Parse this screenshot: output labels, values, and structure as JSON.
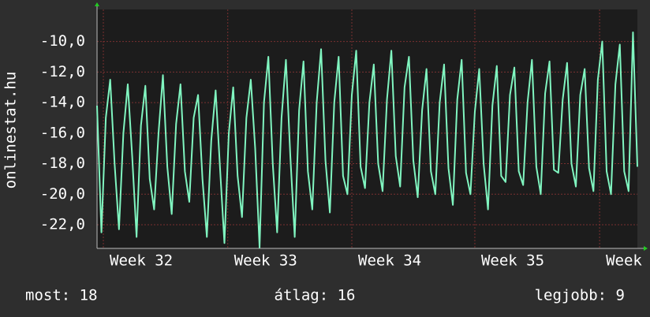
{
  "chart_data": {
    "type": "line",
    "ylabel": "onlinestat.hu",
    "x": [
      0,
      0.25,
      0.5,
      0.75,
      1,
      1.25,
      1.5,
      1.75,
      2,
      2.25,
      2.5,
      2.75,
      3,
      3.25,
      3.5,
      3.75,
      4,
      4.25,
      4.5,
      4.75,
      5,
      5.25,
      5.5,
      5.75,
      6,
      6.25,
      6.5,
      6.75,
      7,
      7.25,
      7.5,
      7.75,
      8,
      8.25,
      8.5,
      8.75,
      9,
      9.25,
      9.5,
      9.75,
      10,
      10.25,
      10.5,
      10.75,
      11,
      11.25,
      11.5,
      11.75,
      12,
      12.25,
      12.5,
      12.75,
      13,
      13.25,
      13.5,
      13.75,
      14,
      14.25,
      14.5,
      14.75,
      15,
      15.25,
      15.5,
      15.75,
      16,
      16.25,
      16.5,
      16.75,
      17,
      17.25,
      17.5,
      17.75,
      18,
      18.25,
      18.5,
      18.75,
      19,
      19.25,
      19.5,
      19.75,
      20,
      20.25,
      20.5,
      20.75,
      21,
      21.25,
      21.5,
      21.75,
      22,
      22.25,
      22.5,
      22.75,
      23,
      23.25,
      23.5,
      23.75,
      24,
      24.25,
      24.5,
      24.75,
      25,
      25.25,
      25.5,
      25.75,
      26,
      26.25,
      26.5,
      26.75,
      27,
      27.25,
      27.5,
      27.75,
      28,
      28.25,
      28.5,
      28.75,
      29,
      29.25,
      29.5,
      29.75,
      30,
      30.25,
      30.5,
      30.75
    ],
    "series": [
      {
        "name": "onlinestat.hu",
        "color": "#80f5c0",
        "values": [
          -14.2,
          -22.5,
          -15,
          -12.5,
          -18,
          -22.3,
          -16,
          -12.8,
          -17.5,
          -22.8,
          -15.5,
          -12.9,
          -19,
          -21,
          -16,
          -12.2,
          -18.2,
          -21.3,
          -15.4,
          -12.8,
          -18.5,
          -20.5,
          -15,
          -13.5,
          -19,
          -22.8,
          -16.5,
          -13.2,
          -18.3,
          -23.2,
          -16,
          -13,
          -18.8,
          -21.5,
          -15,
          -12.5,
          -17,
          -23.5,
          -14,
          -11,
          -18,
          -22.5,
          -15,
          -11.2,
          -17.5,
          -22.8,
          -14.5,
          -11.3,
          -18.5,
          -21,
          -14,
          -10.5,
          -17.8,
          -21.2,
          -14,
          -11,
          -18.8,
          -20,
          -13.5,
          -10.6,
          -18.2,
          -19.6,
          -14,
          -11.5,
          -18,
          -19.8,
          -13.8,
          -10.6,
          -17.5,
          -19.5,
          -13,
          -11,
          -17.8,
          -20.2,
          -14.5,
          -11.8,
          -18.5,
          -20,
          -14,
          -11.5,
          -18.3,
          -20.7,
          -13.8,
          -11.2,
          -18.6,
          -20,
          -14.6,
          -11.8,
          -18,
          -21,
          -14.2,
          -11.6,
          -18.8,
          -19.2,
          -13.5,
          -11.7,
          -18.5,
          -19.4,
          -14,
          -11.2,
          -18.2,
          -20,
          -13.4,
          -11.3,
          -18.4,
          -18.6,
          -13.8,
          -11.4,
          -18,
          -19.5,
          -13.5,
          -11.8,
          -18.3,
          -19.8,
          -12.5,
          -10,
          -18.5,
          -20,
          -12.8,
          -10.2,
          -18.5,
          -19.8,
          -9.4,
          -18.2
        ]
      }
    ],
    "xlim": [
      0,
      30.75
    ],
    "xticks": [
      {
        "value": 0.36,
        "label": "Week 32"
      },
      {
        "value": 7.44,
        "label": "Week 33"
      },
      {
        "value": 14.5,
        "label": "Week 34"
      },
      {
        "value": 21.5,
        "label": "Week 35"
      },
      {
        "value": 28.6,
        "label": "Week"
      }
    ],
    "ylim": [
      -23.55,
      -7.9
    ],
    "yticks": [
      {
        "value": -10,
        "label": "-10,0"
      },
      {
        "value": -12,
        "label": "-12,0"
      },
      {
        "value": -14,
        "label": "-14,0"
      },
      {
        "value": -16,
        "label": "-16,0"
      },
      {
        "value": -18,
        "label": "-18,0"
      },
      {
        "value": -20,
        "label": "-20,0"
      },
      {
        "value": -22,
        "label": "-22,0"
      }
    ],
    "grid": true,
    "footer": [
      "most: 18",
      "átlag: 16",
      "legjobb: 9"
    ]
  }
}
